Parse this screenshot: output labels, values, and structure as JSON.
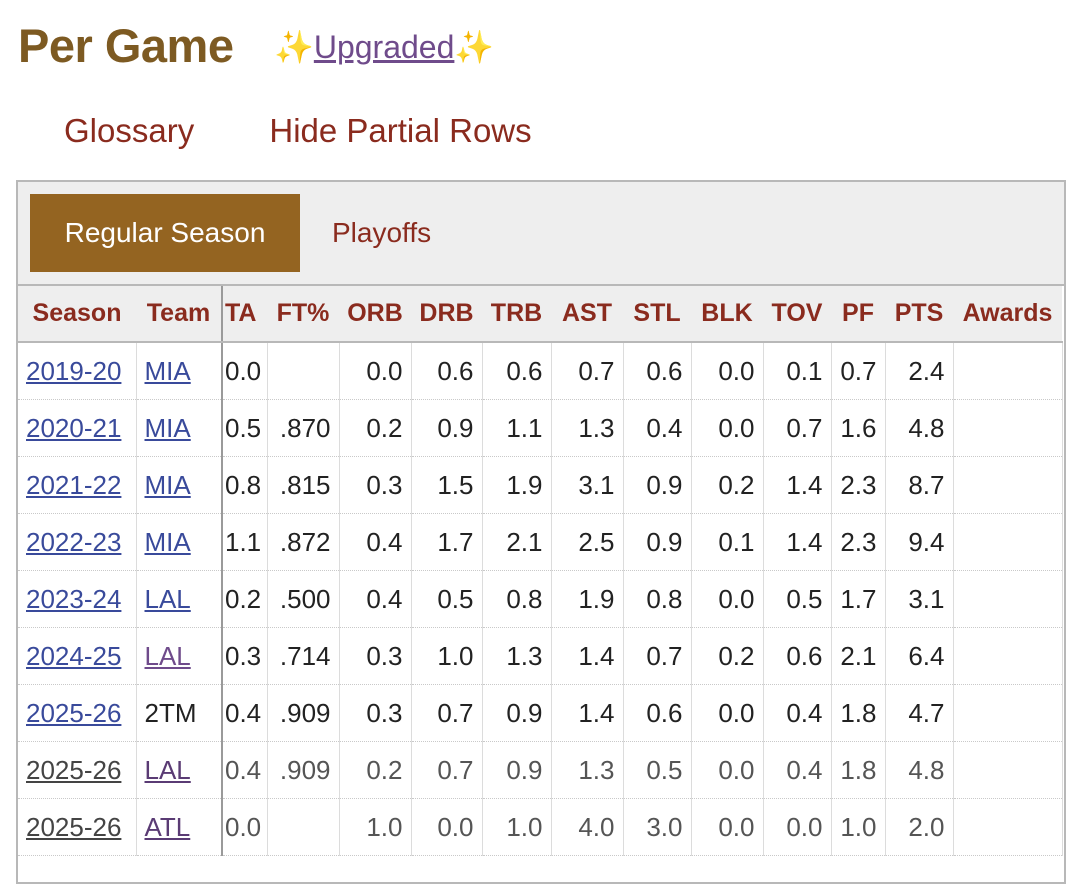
{
  "header": {
    "title": "Per Game",
    "sparkle": "✨",
    "upgrade_label": "Upgraded"
  },
  "links": {
    "glossary": "Glossary",
    "hide_partial": "Hide Partial Rows"
  },
  "tabs": {
    "active": "Regular Season",
    "other": "Playoffs"
  },
  "table": {
    "columns": [
      "Season",
      "Team",
      "TA",
      "FT%",
      "ORB",
      "DRB",
      "TRB",
      "AST",
      "STL",
      "BLK",
      "TOV",
      "PF",
      "PTS",
      "Awards"
    ],
    "rows": [
      {
        "season": "2019-20",
        "team": "MIA",
        "ta": "0.0",
        "ft": "",
        "orb": "0.0",
        "drb": "0.6",
        "trb": "0.6",
        "ast": "0.7",
        "stl": "0.6",
        "blk": "0.0",
        "tov": "0.1",
        "pf": "0.7",
        "pts": "2.4",
        "awards": ""
      },
      {
        "season": "2020-21",
        "team": "MIA",
        "ta": "0.5",
        "ft": ".870",
        "orb": "0.2",
        "drb": "0.9",
        "trb": "1.1",
        "ast": "1.3",
        "stl": "0.4",
        "blk": "0.0",
        "tov": "0.7",
        "pf": "1.6",
        "pts": "4.8",
        "awards": ""
      },
      {
        "season": "2021-22",
        "team": "MIA",
        "ta": "0.8",
        "ft": ".815",
        "orb": "0.3",
        "drb": "1.5",
        "trb": "1.9",
        "ast": "3.1",
        "stl": "0.9",
        "blk": "0.2",
        "tov": "1.4",
        "pf": "2.3",
        "pts": "8.7",
        "awards": ""
      },
      {
        "season": "2022-23",
        "team": "MIA",
        "ta": "1.1",
        "ft": ".872",
        "orb": "0.4",
        "drb": "1.7",
        "trb": "2.1",
        "ast": "2.5",
        "stl": "0.9",
        "blk": "0.1",
        "tov": "1.4",
        "pf": "2.3",
        "pts": "9.4",
        "awards": ""
      },
      {
        "season": "2023-24",
        "team": "LAL",
        "ta": "0.2",
        "ft": ".500",
        "orb": "0.4",
        "drb": "0.5",
        "trb": "0.8",
        "ast": "1.9",
        "stl": "0.8",
        "blk": "0.0",
        "tov": "0.5",
        "pf": "1.7",
        "pts": "3.1",
        "awards": ""
      },
      {
        "season": "2024-25",
        "team": "LAL",
        "ta": "0.3",
        "ft": ".714",
        "orb": "0.3",
        "drb": "1.0",
        "trb": "1.3",
        "ast": "1.4",
        "stl": "0.7",
        "blk": "0.2",
        "tov": "0.6",
        "pf": "2.1",
        "pts": "6.4",
        "awards": ""
      },
      {
        "season": "2025-26",
        "team": "2TM",
        "ta": "0.4",
        "ft": ".909",
        "orb": "0.3",
        "drb": "0.7",
        "trb": "0.9",
        "ast": "1.4",
        "stl": "0.6",
        "blk": "0.0",
        "tov": "0.4",
        "pf": "1.8",
        "pts": "4.7",
        "awards": ""
      },
      {
        "season": "2025-26",
        "team": "LAL",
        "ta": "0.4",
        "ft": ".909",
        "orb": "0.2",
        "drb": "0.7",
        "trb": "0.9",
        "ast": "1.3",
        "stl": "0.5",
        "blk": "0.0",
        "tov": "0.4",
        "pf": "1.8",
        "pts": "4.8",
        "awards": ""
      },
      {
        "season": "2025-26",
        "team": "ATL",
        "ta": "0.0",
        "ft": "",
        "orb": "1.0",
        "drb": "0.0",
        "trb": "1.0",
        "ast": "4.0",
        "stl": "3.0",
        "blk": "0.0",
        "tov": "0.0",
        "pf": "1.0",
        "pts": "2.0",
        "awards": ""
      }
    ]
  }
}
